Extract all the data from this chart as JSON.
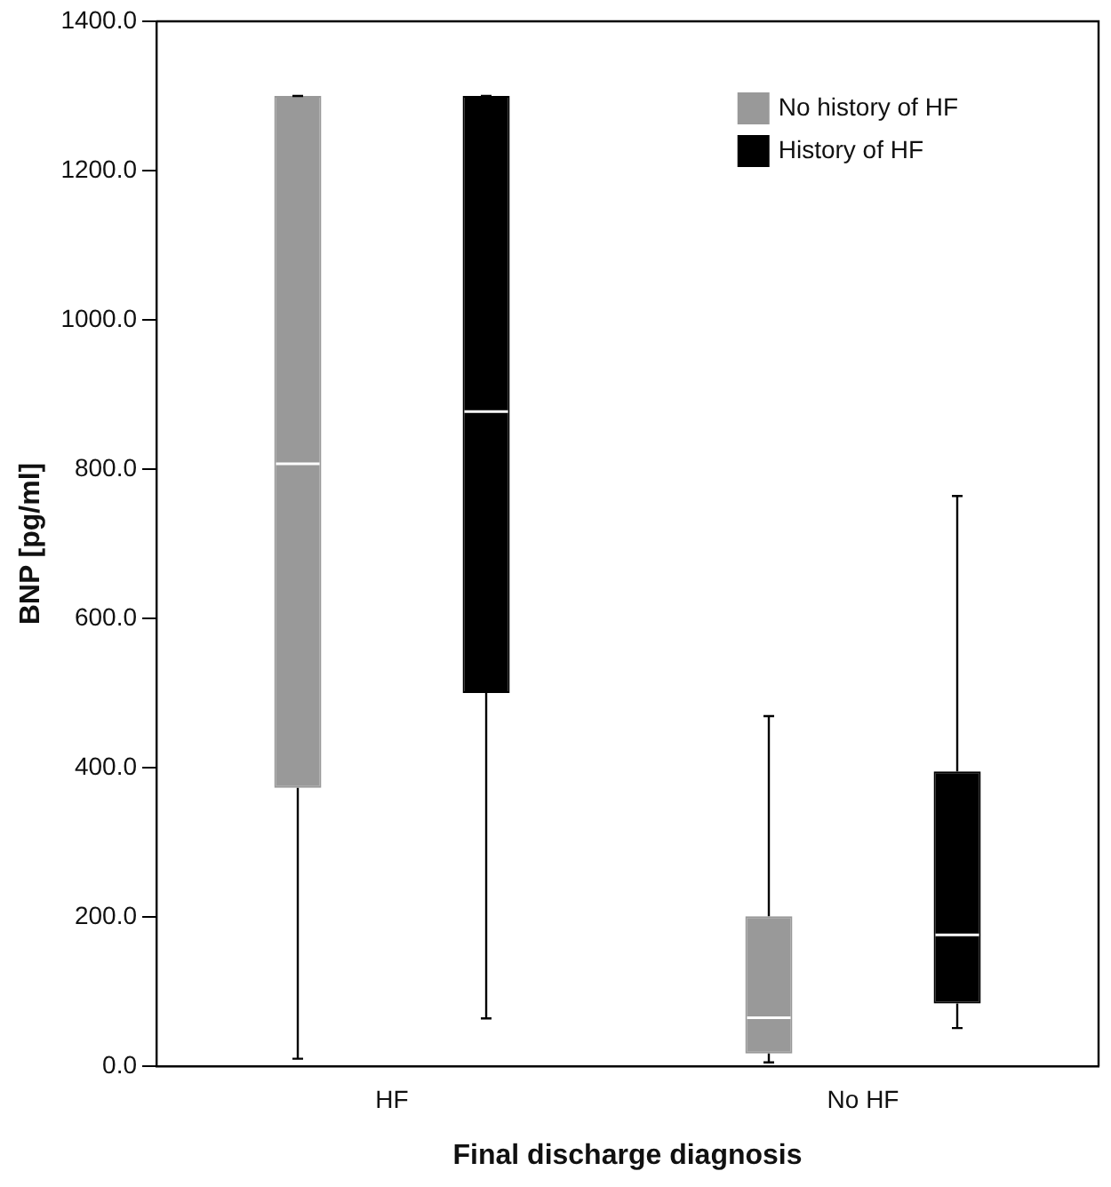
{
  "chart_data": {
    "type": "box",
    "xlabel": "Final discharge diagnosis",
    "ylabel": "BNP [pg/ml]",
    "categories": [
      "HF",
      "No HF"
    ],
    "ylim": [
      0,
      1400
    ],
    "yticks": [
      {
        "value": 0,
        "label": "0.0"
      },
      {
        "value": 200,
        "label": "200.0"
      },
      {
        "value": 400,
        "label": "400.0"
      },
      {
        "value": 600,
        "label": "600.0"
      },
      {
        "value": 800,
        "label": "800.0"
      },
      {
        "value": 1000,
        "label": "1000.0"
      },
      {
        "value": 1200,
        "label": "1200.0"
      },
      {
        "value": 1400,
        "label": "1400.0"
      }
    ],
    "grid": false,
    "legend": "top right",
    "series": [
      {
        "name": "No history of HF",
        "color": "#999999",
        "boxes": [
          {
            "low": 10,
            "q1": 373,
            "median": 807,
            "q3": 1300,
            "high": 1300
          },
          {
            "low": 5,
            "q1": 17,
            "median": 65,
            "q3": 201,
            "high": 469
          }
        ]
      },
      {
        "name": "History of HF",
        "color": "#000000",
        "boxes": [
          {
            "low": 64,
            "q1": 500,
            "median": 877,
            "q3": 1300,
            "high": 1300
          },
          {
            "low": 51,
            "q1": 84,
            "median": 176,
            "q3": 395,
            "high": 764
          }
        ]
      }
    ]
  }
}
